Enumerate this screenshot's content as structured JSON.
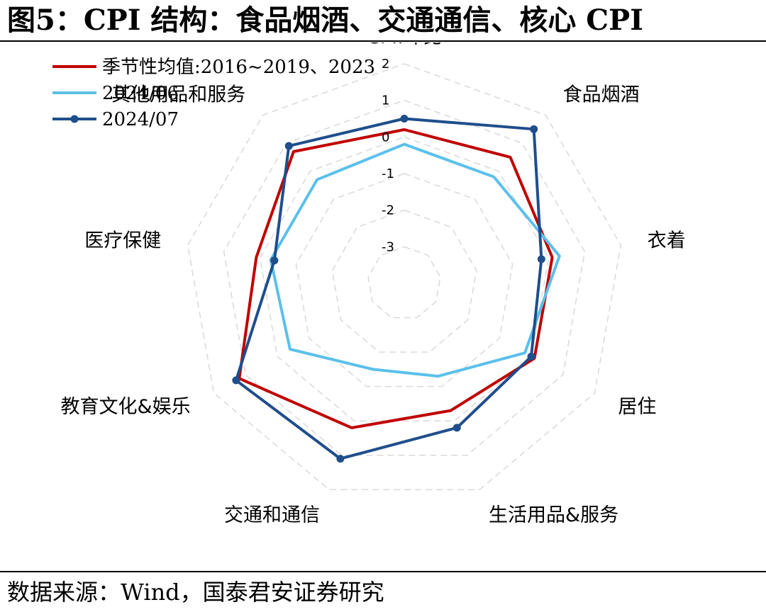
{
  "title": "图5：CPI 结构：食品烟酒、交通通信、核心 CPI",
  "source": "数据来源：Wind，国泰君安证券研究",
  "chart_data": {
    "type": "radar",
    "axes": [
      "CPI:环比",
      "食品烟酒",
      "衣着",
      "居住",
      "生活用品&服务",
      "交通和通信",
      "教育文化&娱乐",
      "医疗保健",
      "其他用品和服务"
    ],
    "range": [
      -4,
      2
    ],
    "ticks": [
      2,
      1,
      0,
      -1,
      -2,
      -3
    ],
    "tick_labels": [
      "2",
      "1",
      "0",
      "-1",
      "-2",
      "-3"
    ],
    "grid": true,
    "legend_position": "top-left",
    "series": [
      {
        "name": "季节性均值:2016~2019、2023",
        "color": "#c00000",
        "markers": false,
        "values": [
          0.2,
          0.5,
          0.1,
          0.1,
          -0.3,
          0.2,
          1.2,
          0.1,
          0.7
        ]
      },
      {
        "name": "2024/06",
        "color": "#5bc0eb",
        "markers": false,
        "values": [
          -0.2,
          -0.2,
          0.3,
          -0.2,
          -1.3,
          -1.5,
          -0.4,
          -0.3,
          -0.3
        ]
      },
      {
        "name": "2024/07",
        "color": "#1f4e8c",
        "markers": true,
        "values": [
          0.5,
          1.5,
          -0.2,
          0.0,
          0.2,
          1.1,
          1.3,
          -0.4,
          0.9
        ]
      }
    ]
  }
}
